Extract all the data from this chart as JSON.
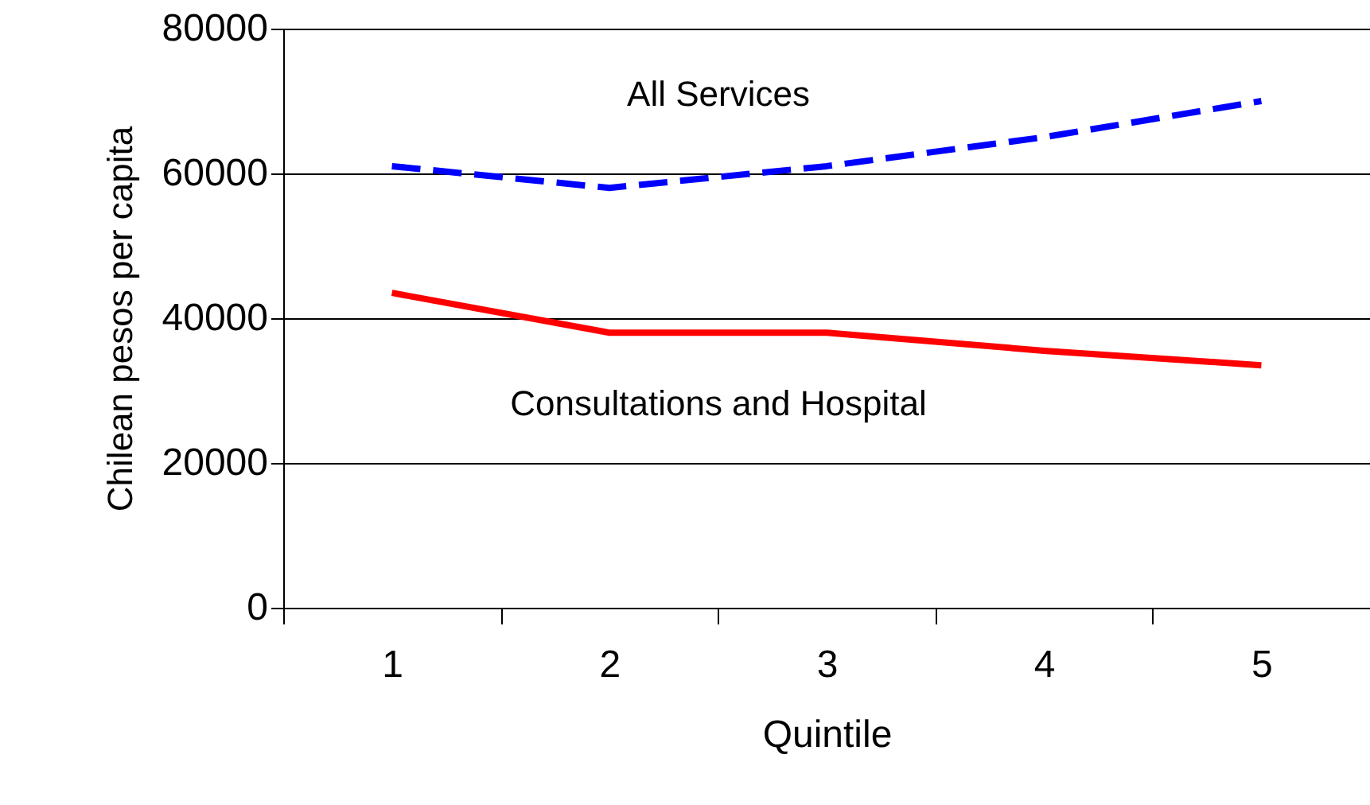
{
  "chart_data": {
    "type": "line",
    "xlabel": "Quintile",
    "ylabel": "Chilean pesos per capita",
    "categories": [
      "1",
      "2",
      "3",
      "4",
      "5"
    ],
    "series": [
      {
        "name": "All Services",
        "color": "#0000ff",
        "line_style": "dashed",
        "values": [
          61000,
          58000,
          61000,
          65000,
          70000
        ]
      },
      {
        "name": "Consultations and Hospital",
        "color": "#ff0000",
        "line_style": "solid",
        "values": [
          43500,
          38000,
          38000,
          35500,
          33500
        ]
      }
    ],
    "ylim": [
      0,
      80000
    ],
    "yticks": [
      0,
      20000,
      40000,
      60000,
      80000
    ],
    "grid": "y",
    "marker": "none"
  }
}
